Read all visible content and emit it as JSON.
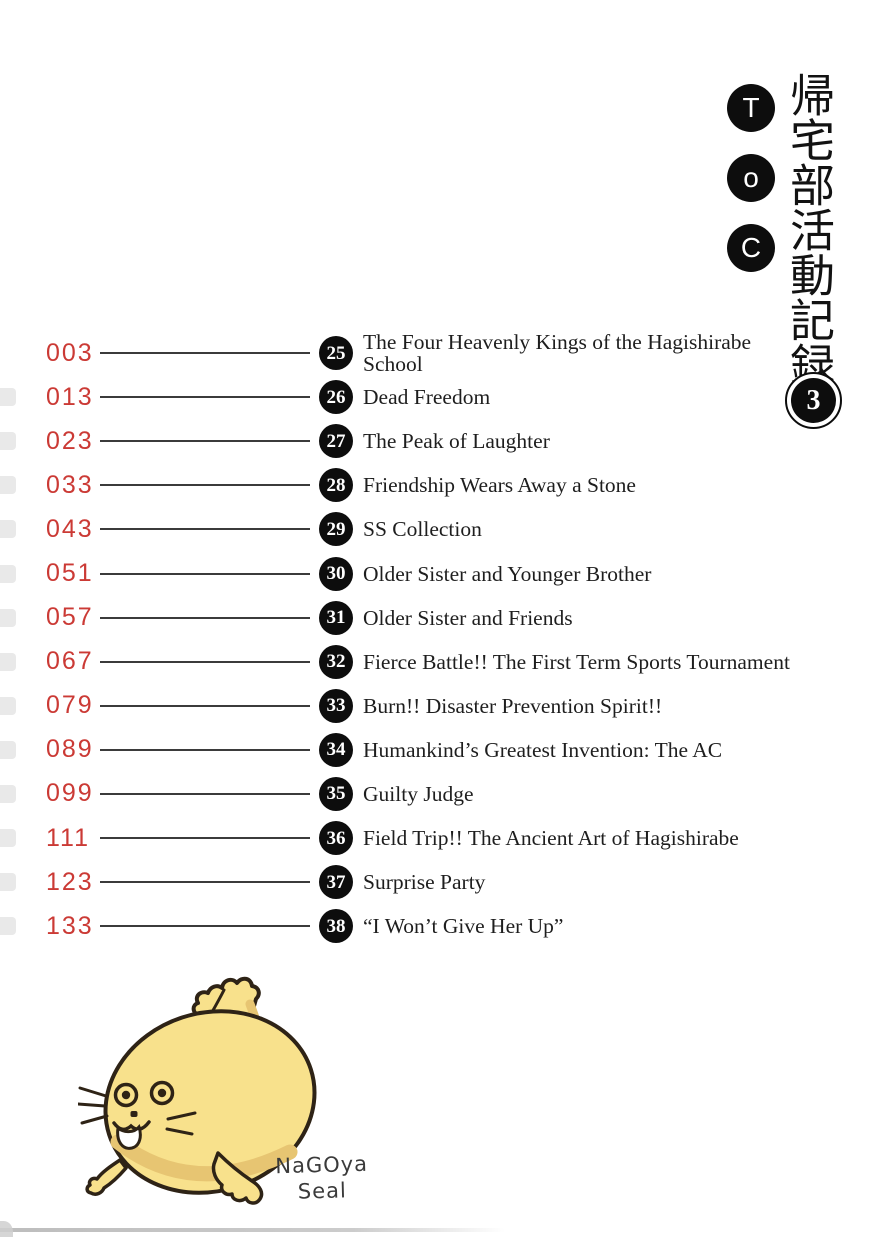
{
  "header": {
    "toc_letters": [
      "T",
      "o",
      "C"
    ],
    "series_title_vertical": "帰宅部活動記録",
    "volume_number": "3"
  },
  "chapters": [
    {
      "page": "003",
      "number": "25",
      "title": "The Four Heavenly Kings of the Hagishirabe\nSchool"
    },
    {
      "page": "013",
      "number": "26",
      "title": "Dead Freedom"
    },
    {
      "page": "023",
      "number": "27",
      "title": "The Peak of Laughter"
    },
    {
      "page": "033",
      "number": "28",
      "title": "Friendship Wears Away a Stone"
    },
    {
      "page": "043",
      "number": "29",
      "title": "SS Collection"
    },
    {
      "page": "051",
      "number": "30",
      "title": "Older Sister and Younger Brother"
    },
    {
      "page": "057",
      "number": "31",
      "title": "Older Sister and Friends"
    },
    {
      "page": "067",
      "number": "32",
      "title": "Fierce Battle!! The First Term Sports Tournament"
    },
    {
      "page": "079",
      "number": "33",
      "title": "Burn!! Disaster Prevention Spirit!!"
    },
    {
      "page": "089",
      "number": "34",
      "title": "Humankind’s Greatest Invention: The AC"
    },
    {
      "page": "099",
      "number": "35",
      "title": "Guilty Judge"
    },
    {
      "page": "111",
      "number": "36",
      "title": "Field Trip!! The Ancient Art of Hagishirabe"
    },
    {
      "page": "123",
      "number": "37",
      "title": "Surprise Party"
    },
    {
      "page": "133",
      "number": "38",
      "title": "“I Won’t Give Her Up”"
    }
  ],
  "mascot": {
    "caption_line1": "NaGOya",
    "caption_line2": "Seal",
    "body_color": "#f8e18c",
    "shade_color": "#e7c572",
    "outline_color": "#2e2316"
  },
  "theme": {
    "page_number_color": "#cb3a35",
    "rule_color": "#3b3b3b",
    "badge_bg": "#0d0d0d",
    "badge_text": "#ffffff",
    "title_color": "#1e1e1e"
  }
}
